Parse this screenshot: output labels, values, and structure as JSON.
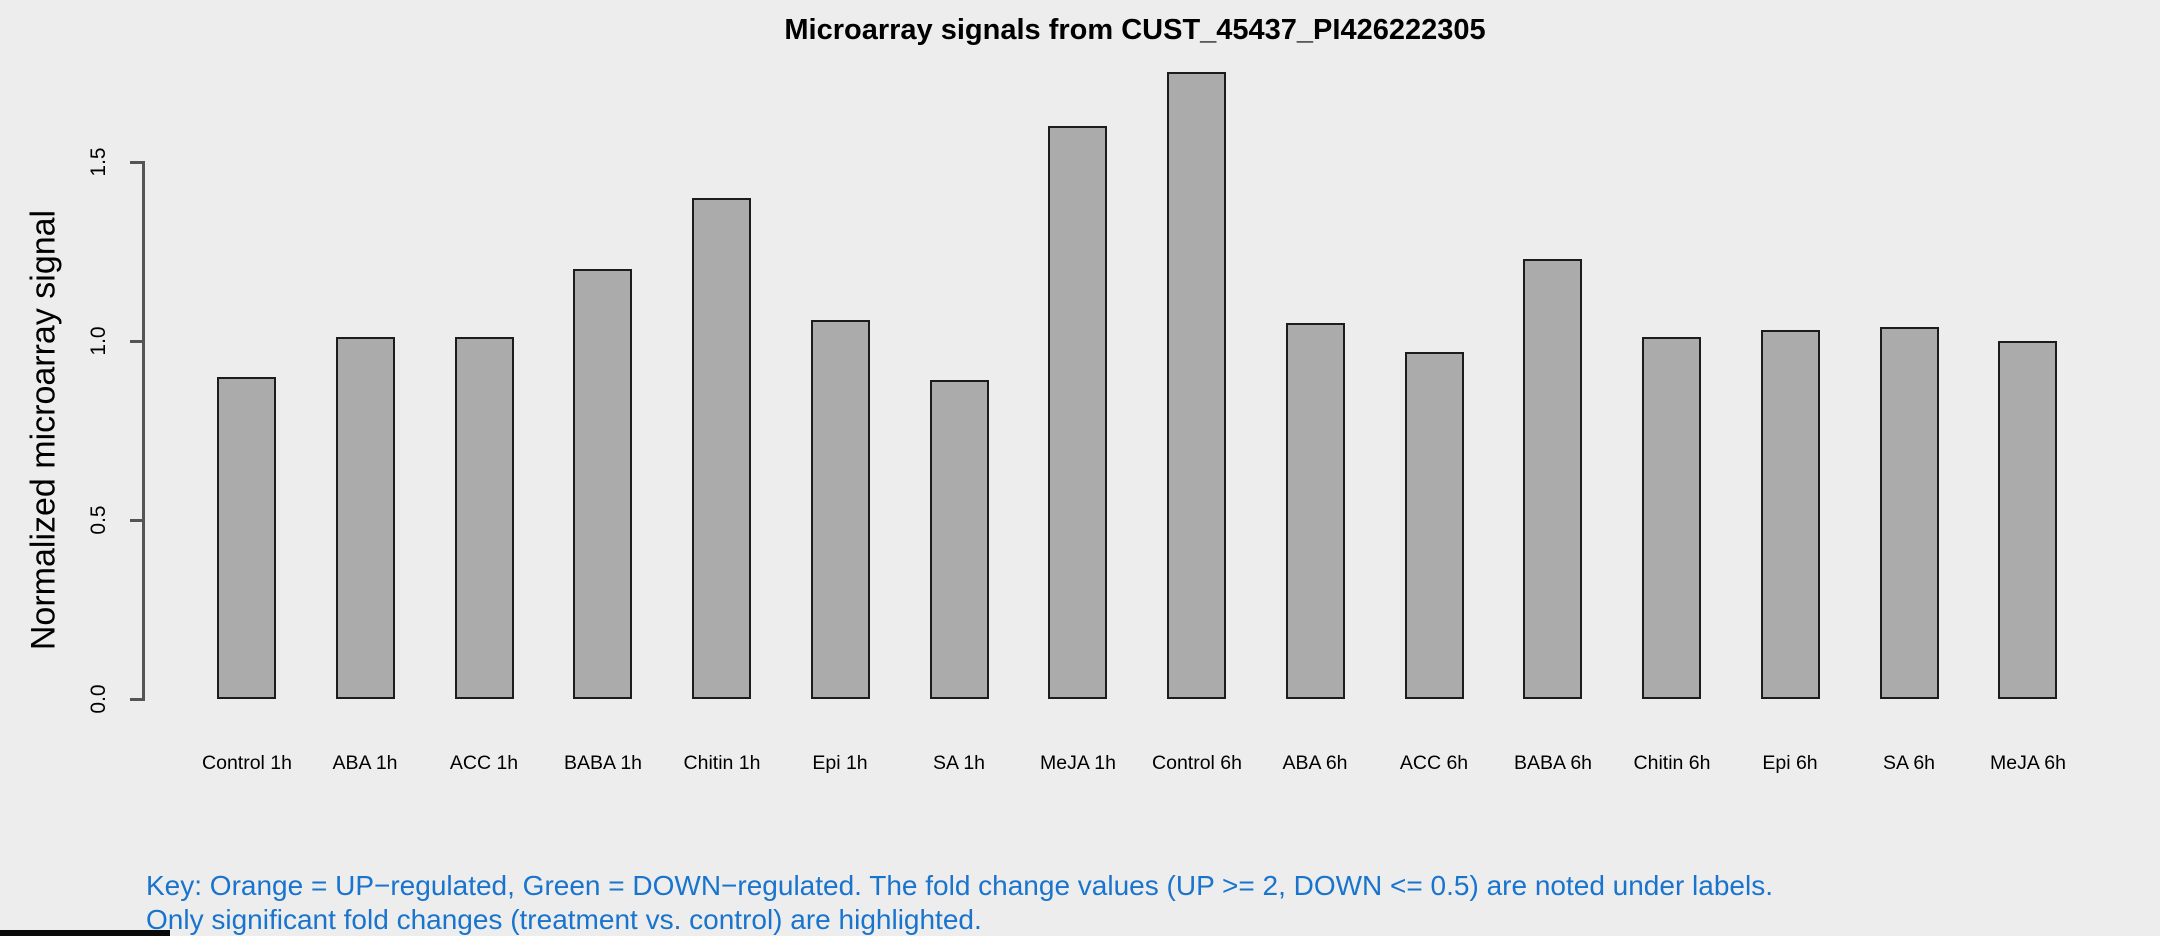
{
  "title": "Microarray signals from CUST_45437_PI426222305",
  "y_axis": {
    "label": "Normalized microarray signal",
    "tick_labels": [
      "0.0",
      "0.5",
      "1.0",
      "1.5"
    ]
  },
  "key": {
    "line1": "Key: Orange = UP−regulated, Green = DOWN−regulated. The fold change values (UP >= 2, DOWN <= 0.5) are noted under labels.",
    "line2": "Only significant fold changes (treatment vs. control) are highlighted.",
    "text_color": "#1874cd"
  },
  "colors": {
    "background": "#ededed",
    "bar_fill": "#ababab",
    "bar_border": "#1c1c1c",
    "axis": "#555555",
    "title_text": "#000000"
  },
  "chart_data": {
    "type": "bar",
    "title": "Microarray signals from CUST_45437_PI426222305",
    "xlabel": "",
    "ylabel": "Normalized microarray signal",
    "categories": [
      "Control 1h",
      "ABA 1h",
      "ACC 1h",
      "BABA 1h",
      "Chitin 1h",
      "Epi 1h",
      "SA 1h",
      "MeJA 1h",
      "Control 6h",
      "ABA 6h",
      "ACC 6h",
      "BABA 6h",
      "Chitin 6h",
      "Epi 6h",
      "SA 6h",
      "MeJA 6h"
    ],
    "values": [
      0.9,
      1.01,
      1.01,
      1.2,
      1.4,
      1.06,
      0.89,
      1.6,
      1.75,
      1.05,
      0.97,
      1.23,
      1.01,
      1.03,
      1.04,
      1.0
    ],
    "yticks": [
      0.0,
      0.5,
      1.0,
      1.5
    ],
    "ylim": [
      0,
      1.79
    ],
    "grid": false,
    "legend": "none",
    "bar_color": "#ababab"
  }
}
